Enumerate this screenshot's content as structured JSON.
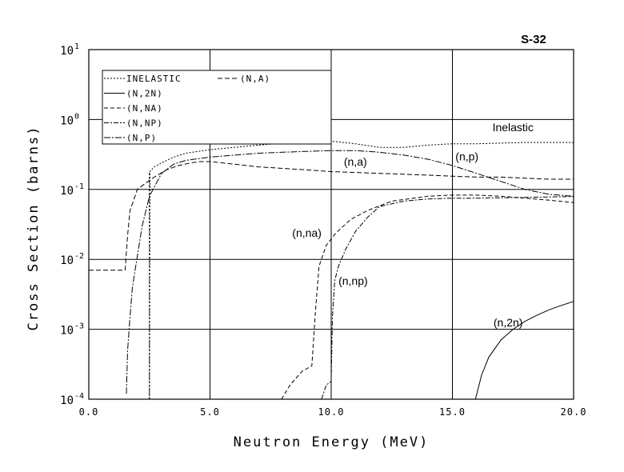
{
  "chart_data": {
    "type": "line",
    "title": "S-32",
    "xlabel": "Neutron Energy (MeV)",
    "ylabel": "Cross Section (barns)",
    "xlim": [
      0,
      20
    ],
    "ylim": [
      0.0001,
      10
    ],
    "yscale": "log",
    "grid": true,
    "legend_position": "top-left",
    "x_ticks": [
      "0.0",
      "5.0",
      "10.0",
      "15.0",
      "20.0"
    ],
    "y_ticks": [
      {
        "base": "10",
        "exp": "1"
      },
      {
        "base": "10",
        "exp": "0"
      },
      {
        "base": "10",
        "exp": "-1"
      },
      {
        "base": "10",
        "exp": "-2"
      },
      {
        "base": "10",
        "exp": "-3"
      },
      {
        "base": "10",
        "exp": "-4"
      }
    ],
    "legend": [
      {
        "label": "INELASTIC",
        "dash": "2,2"
      },
      {
        "label": "(N,2N)",
        "dash": ""
      },
      {
        "label": "(N,NA)",
        "dash": "5,3"
      },
      {
        "label": "(N,NP)",
        "dash": "6,2,2,2"
      },
      {
        "label": "(N,P)",
        "dash": "8,2,2,2"
      },
      {
        "label": "(N,A)",
        "dash": "6,3"
      }
    ],
    "annotations": [
      "Inelastic",
      "(n,a)",
      "(n,p)",
      "(n,na)",
      "(n,np)",
      "(n,2n)"
    ],
    "series": [
      {
        "name": "INELASTIC",
        "x": [
          2.5,
          2.52,
          2.7,
          3.0,
          3.5,
          4.0,
          5.0,
          6.0,
          7.0,
          8.0,
          9.0,
          10.0,
          11.0,
          12.0,
          13.0,
          14.0,
          15.0,
          16.0,
          17.0,
          18.0,
          19.0,
          20.0
        ],
        "y": [
          0.0001,
          0.18,
          0.21,
          0.24,
          0.29,
          0.33,
          0.37,
          0.4,
          0.43,
          0.46,
          0.48,
          0.49,
          0.45,
          0.4,
          0.4,
          0.43,
          0.45,
          0.45,
          0.46,
          0.47,
          0.47,
          0.47
        ]
      },
      {
        "name": "(N,2N)",
        "x": [
          15.95,
          16.2,
          16.5,
          17.0,
          17.5,
          18.0,
          18.5,
          19.0,
          19.5,
          20.0
        ],
        "y": [
          0.0001,
          0.00022,
          0.0004,
          0.0007,
          0.001,
          0.0013,
          0.0016,
          0.0019,
          0.0022,
          0.0025
        ]
      },
      {
        "name": "(N,NA)",
        "x": [
          7.95,
          8.3,
          8.8,
          9.2,
          9.35,
          9.5,
          9.8,
          10.2,
          10.8,
          11.5,
          12.5,
          14.0,
          15.0,
          16.0,
          17.0,
          18.0,
          19.0,
          20.0
        ],
        "y": [
          0.0001,
          0.00016,
          0.00025,
          0.0003,
          0.0018,
          0.008,
          0.016,
          0.024,
          0.037,
          0.05,
          0.068,
          0.08,
          0.083,
          0.083,
          0.08,
          0.075,
          0.07,
          0.065
        ]
      },
      {
        "name": "(N,NP)",
        "x": [
          9.6,
          9.8,
          10.0,
          10.05,
          10.15,
          10.3,
          10.6,
          11.0,
          11.5,
          12.0,
          13.0,
          14.0,
          15.0,
          16.0,
          17.0,
          18.0,
          19.0,
          20.0
        ],
        "y": [
          0.0001,
          0.00016,
          0.00018,
          0.0015,
          0.005,
          0.008,
          0.014,
          0.025,
          0.04,
          0.057,
          0.068,
          0.073,
          0.075,
          0.075,
          0.076,
          0.077,
          0.078,
          0.079
        ]
      },
      {
        "name": "(N,P)",
        "x": [
          1.55,
          1.6,
          1.7,
          1.8,
          2.0,
          2.2,
          2.5,
          3.0,
          3.5,
          4.0,
          5.0,
          6.0,
          7.0,
          8.0,
          9.0,
          10.0,
          11.0,
          12.0,
          13.0,
          14.0,
          15.0,
          16.0,
          17.0,
          18.0,
          19.0,
          20.0
        ],
        "y": [
          0.00012,
          0.0005,
          0.0015,
          0.004,
          0.011,
          0.03,
          0.08,
          0.17,
          0.23,
          0.26,
          0.29,
          0.31,
          0.33,
          0.34,
          0.35,
          0.36,
          0.36,
          0.34,
          0.31,
          0.27,
          0.22,
          0.17,
          0.13,
          0.1,
          0.085,
          0.08
        ]
      },
      {
        "name": "(N,A)",
        "x": [
          0.0,
          1.2,
          1.5,
          1.6,
          1.7,
          1.85,
          2.0,
          2.3,
          2.7,
          3.2,
          3.7,
          4.2,
          4.6,
          5.0,
          6.0,
          7.0,
          8.0,
          9.0,
          10.0,
          11.0,
          12.0,
          13.0,
          14.0,
          15.0,
          16.0,
          17.0,
          18.0,
          19.0,
          20.0
        ],
        "y": [
          0.007,
          0.007,
          0.007,
          0.022,
          0.05,
          0.07,
          0.1,
          0.12,
          0.15,
          0.19,
          0.22,
          0.24,
          0.25,
          0.25,
          0.23,
          0.21,
          0.2,
          0.19,
          0.18,
          0.175,
          0.17,
          0.165,
          0.16,
          0.155,
          0.15,
          0.15,
          0.145,
          0.14,
          0.14
        ]
      }
    ]
  }
}
